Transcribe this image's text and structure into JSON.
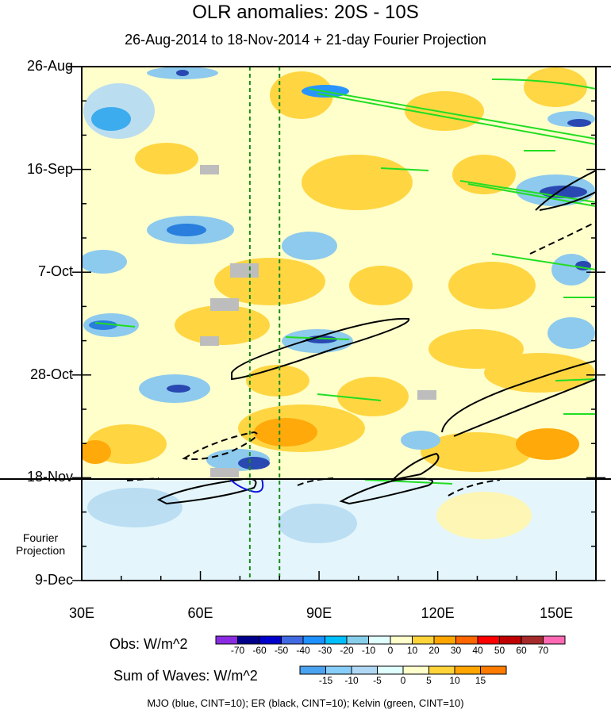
{
  "chart_data": {
    "type": "heatmap",
    "title": "OLR anomalies: 20S - 10S",
    "subtitle": "26-Aug-2014 to 18-Nov-2014 + 21-day Fourier Projection",
    "x_axis": {
      "labels": [
        "30E",
        "60E",
        "90E",
        "120E",
        "150E"
      ],
      "values": [
        30,
        60,
        90,
        120,
        150
      ],
      "range": [
        30,
        160
      ]
    },
    "y_axis": {
      "labels": [
        "26-Aug",
        "16-Sep",
        "7-Oct",
        "28-Oct",
        "18-Nov",
        "9-Dec"
      ],
      "day_values": [
        0,
        21,
        42,
        63,
        84,
        105
      ],
      "range_days": [
        0,
        105
      ]
    },
    "projection_label": "Fourier Projection",
    "projection_start_label": "18-Nov",
    "reference_lines_lon": [
      72.5,
      80
    ],
    "obs_colorbar": {
      "title": "Obs: W/m^2",
      "levels": [
        -70,
        -60,
        -50,
        -40,
        -30,
        -20,
        -10,
        0,
        10,
        20,
        30,
        40,
        50,
        60,
        70
      ],
      "colors": [
        "#8a2be2",
        "#00008b",
        "#0000cd",
        "#4169e1",
        "#1e90ff",
        "#00bfff",
        "#87ceeb",
        "#e0ffff",
        "#ffffcc",
        "#ffd43b",
        "#ffa500",
        "#ff6600",
        "#ff0000",
        "#c00000",
        "#a52a2a",
        "#ff69b4"
      ]
    },
    "waves_colorbar": {
      "title": "Sum of Waves: W/m^2",
      "levels": [
        -15,
        -10,
        -5,
        0,
        5,
        10,
        15
      ],
      "colors": [
        "#4aa3f0",
        "#87cefa",
        "#b0d8f5",
        "#e0ffff",
        "#ffffcc",
        "#ffd43b",
        "#ffa500",
        "#ff7b00"
      ]
    },
    "contours": [
      {
        "name": "MJO",
        "color": "#0000cc",
        "cint": 10
      },
      {
        "name": "ER",
        "color": "#000000",
        "cint": 10
      },
      {
        "name": "Kelvin",
        "color": "#00dd00",
        "cint": 10
      }
    ],
    "footnote": "MJO (blue, CINT=10); ER (black, CINT=10); Kelvin (green, CINT=10)"
  }
}
